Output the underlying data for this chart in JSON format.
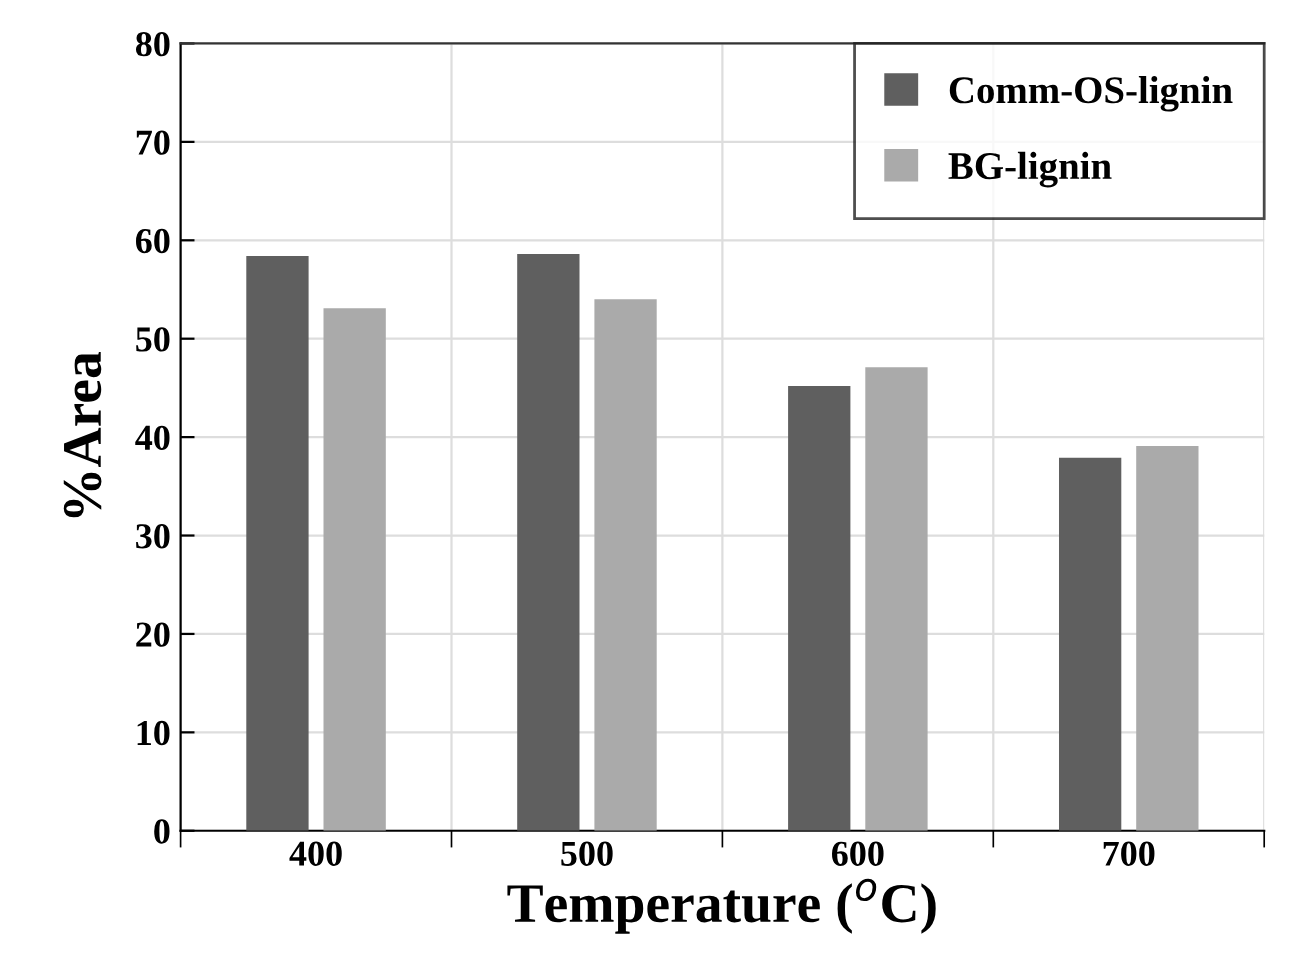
{
  "chart_data": {
    "type": "bar",
    "xlabel": "Temperature ($^{o}$C)",
    "ylabel": "%Area",
    "categories": [
      "400",
      "500",
      "600",
      "700"
    ],
    "series": [
      {
        "name": "Comm-OS-lignin",
        "color": "#5f5f5f",
        "values": [
          58.4,
          58.6,
          45.2,
          37.9
        ]
      },
      {
        "name": "BG-lignin",
        "color": "#aaaaaa",
        "values": [
          53.1,
          54.0,
          47.1,
          39.1
        ]
      }
    ],
    "ylim": [
      0,
      80
    ],
    "yticks": [
      0,
      10,
      20,
      30,
      40,
      50,
      60,
      70,
      80
    ],
    "grid": true,
    "legend": "top right"
  }
}
